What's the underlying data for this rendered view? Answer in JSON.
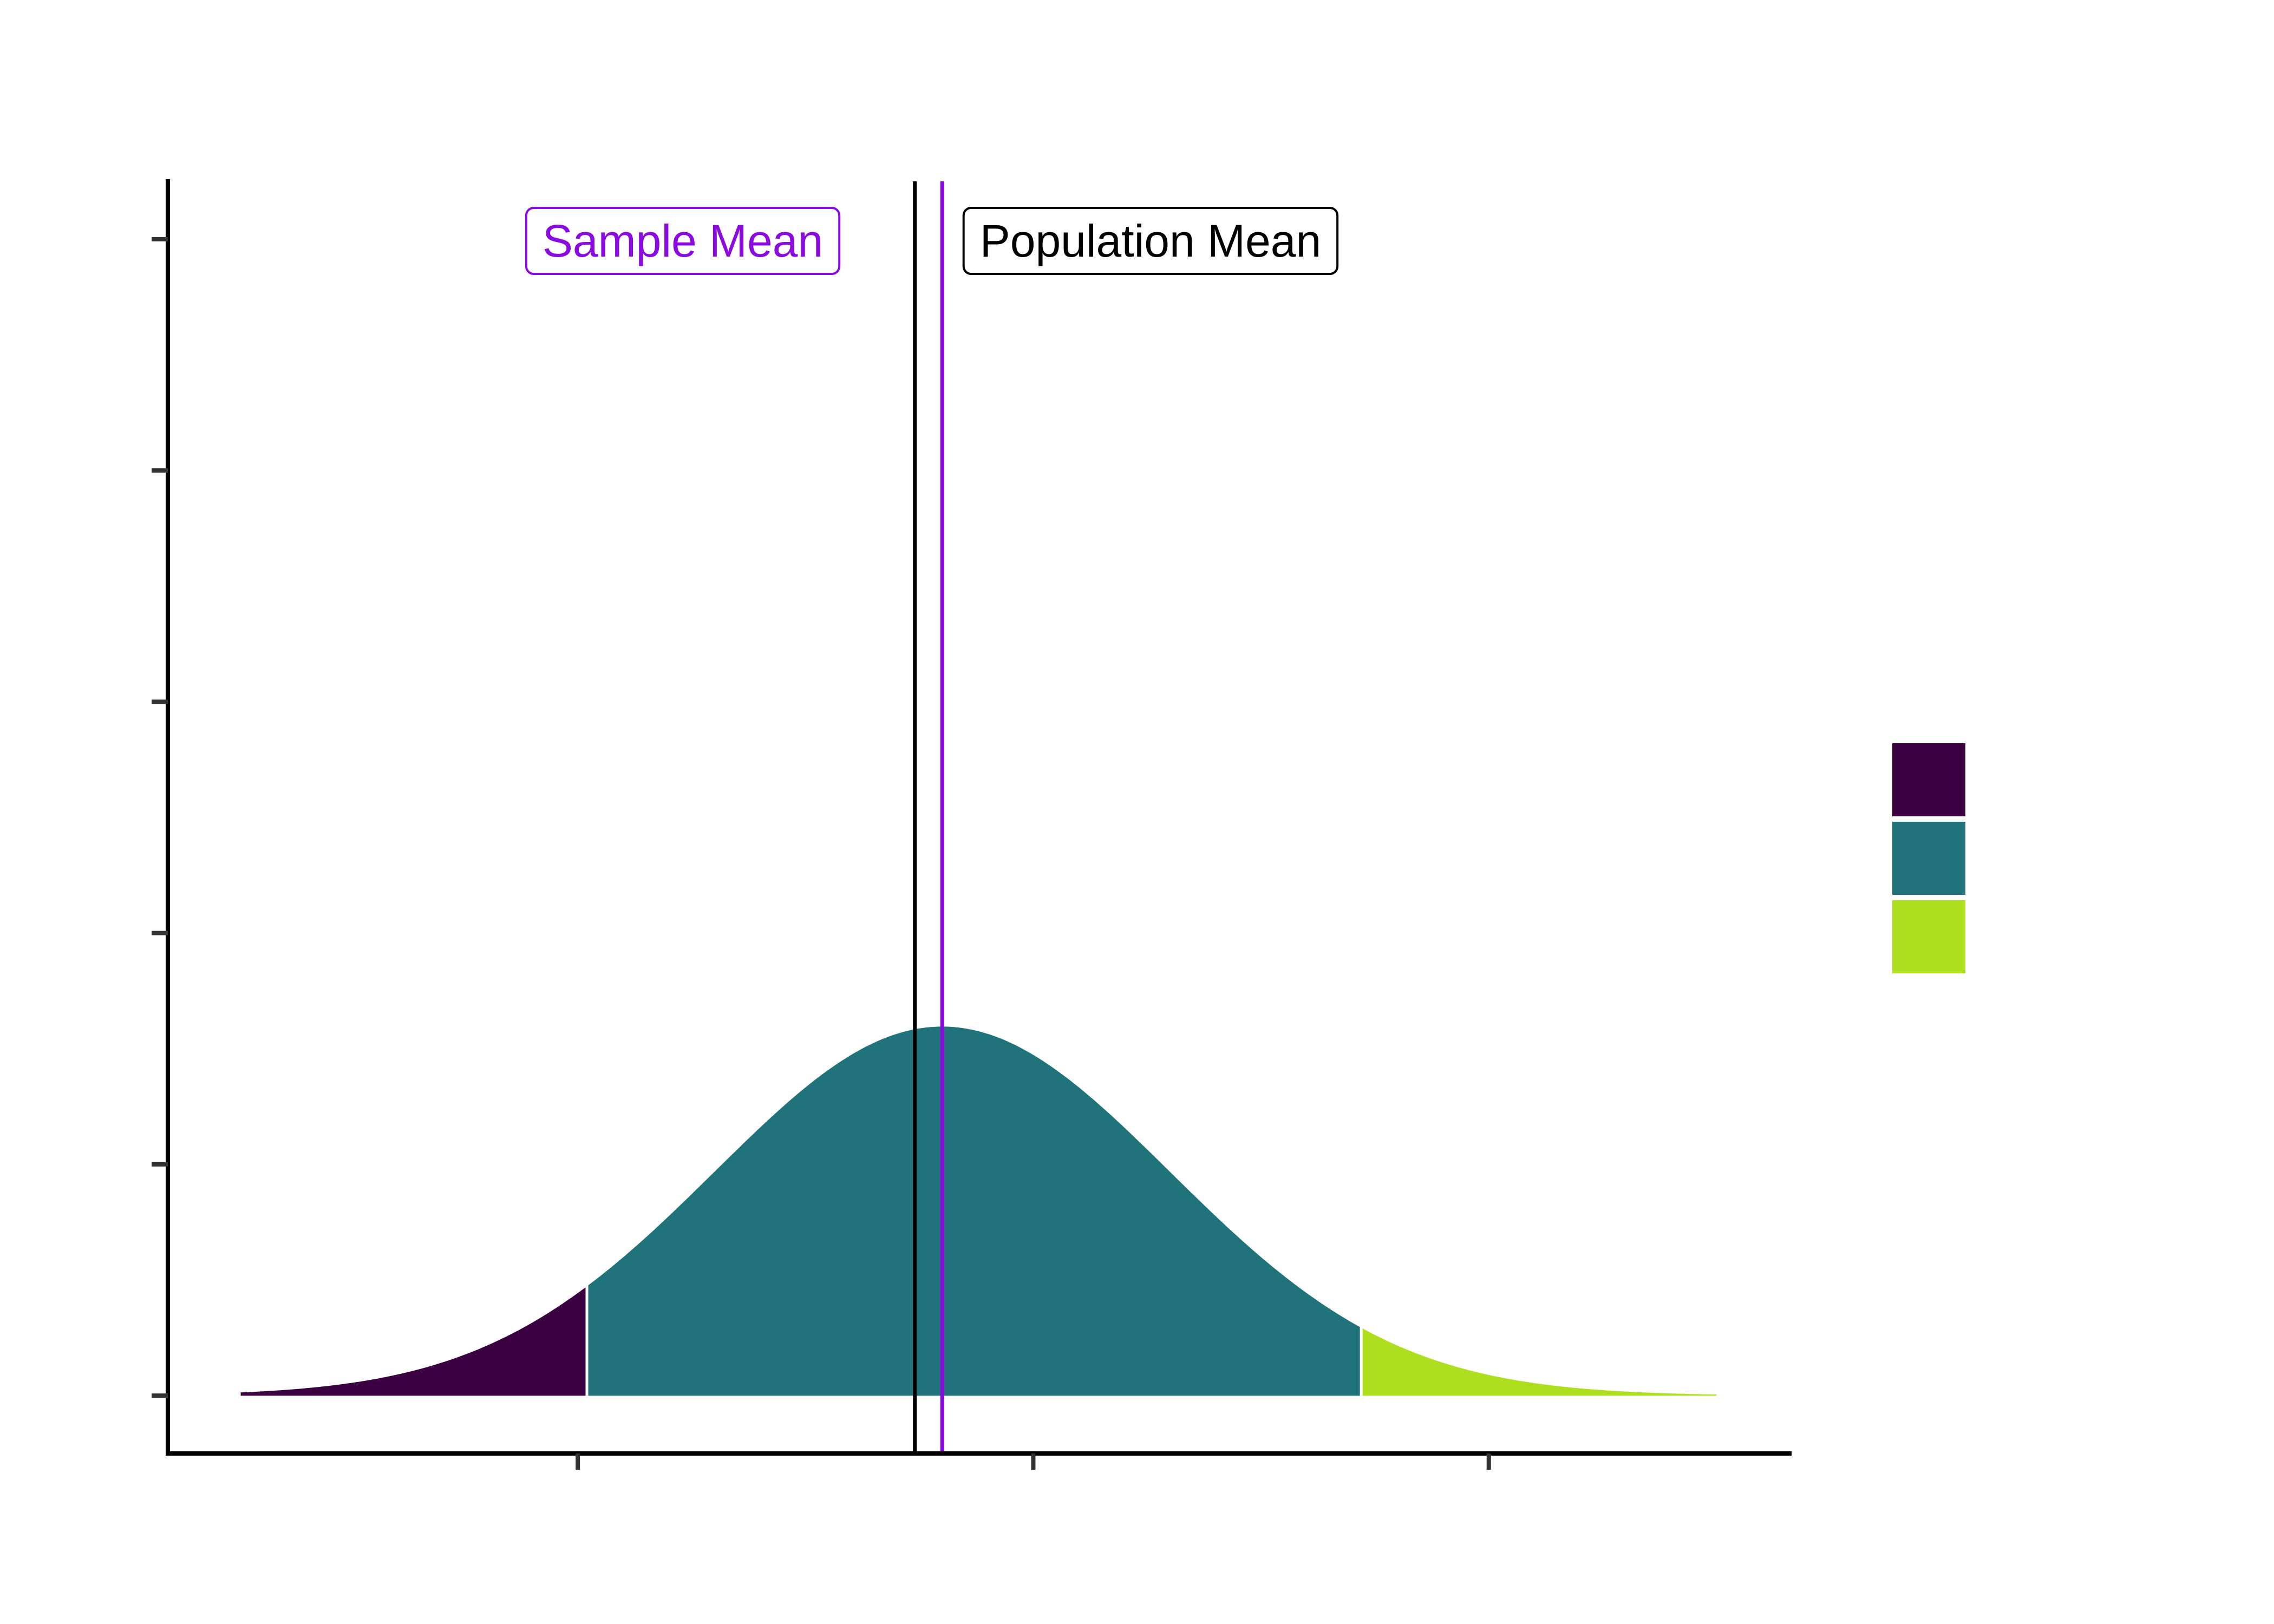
{
  "chart_data": {
    "type": "area",
    "title": "",
    "xlabel": "",
    "ylabel": "",
    "xlim": [
      -0.95,
      0.83
    ],
    "ylim": [
      -0.25,
      5.25
    ],
    "x_ticks": [
      -0.5,
      0,
      0.5
    ],
    "y_ticks": [
      0,
      1,
      2,
      3,
      4,
      5
    ],
    "curve": {
      "distribution": "normal",
      "mean": -0.1,
      "sd": 0.25,
      "x_range": [
        -0.87,
        0.75
      ]
    },
    "regions": [
      {
        "x_range": [
          -0.87,
          -0.49
        ],
        "color": "#3b0040"
      },
      {
        "x_range": [
          -0.49,
          0.36
        ],
        "color": "#21737b"
      },
      {
        "x_range": [
          0.36,
          0.75
        ],
        "color": "#addf1f"
      }
    ],
    "vlines": [
      {
        "x": -0.13,
        "color": "#000000",
        "label": "Population Mean",
        "label_side": "right"
      },
      {
        "x": -0.1,
        "color": "#8a0ae0",
        "label": "Sample Mean",
        "label_side": "left"
      }
    ],
    "legend": {
      "position": "right",
      "title": "",
      "labels": [
        "",
        "",
        ""
      ]
    },
    "grid": false
  }
}
